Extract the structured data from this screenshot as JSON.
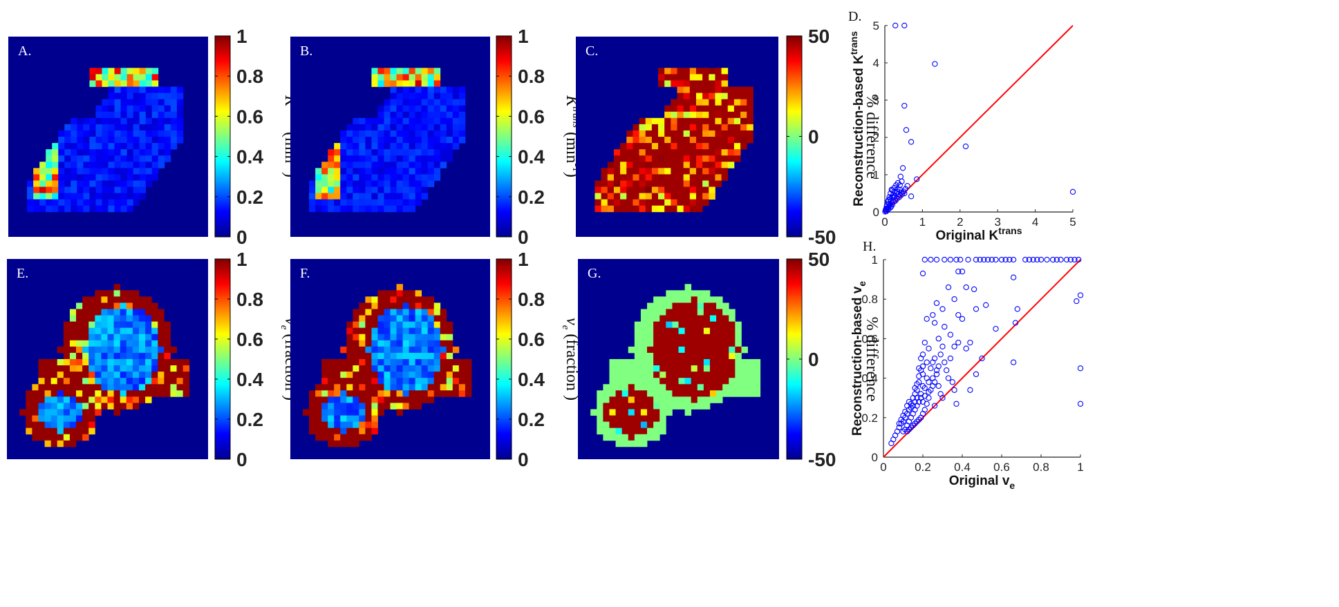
{
  "colors": {
    "map_background": "#00008f",
    "scatter_marker": "#0000ff",
    "identity_line": "#ff0000"
  },
  "maps": [
    {
      "id": "A",
      "label": "A.",
      "colorbar": {
        "ticks": [
          "1",
          "0.8",
          "0.6",
          "0.4",
          "0.2",
          "0"
        ],
        "label_main": "K",
        "label_sup": "trans",
        "label_unit": " (min",
        "label_unit_sup": "-1",
        "label_close": ")"
      }
    },
    {
      "id": "B",
      "label": "B.",
      "colorbar": {
        "ticks": [
          "1",
          "0.8",
          "0.6",
          "0.4",
          "0.2",
          "0"
        ],
        "label_main": "K",
        "label_sup": "trans",
        "label_unit": " (min",
        "label_unit_sup": "-1",
        "label_close": ")"
      }
    },
    {
      "id": "C",
      "label": "C.",
      "colorbar": {
        "ticks": [
          "50",
          "0",
          "-50"
        ],
        "label_text": "% difference"
      }
    },
    {
      "id": "E",
      "label": "E.",
      "colorbar": {
        "ticks": [
          "1",
          "0.8",
          "0.6",
          "0.4",
          "0.2",
          "0"
        ],
        "label_main": "v",
        "label_sub": "e",
        "label_unit": " (fraction )"
      }
    },
    {
      "id": "F",
      "label": "F.",
      "colorbar": {
        "ticks": [
          "1",
          "0.8",
          "0.6",
          "0.4",
          "0.2",
          "0"
        ],
        "label_main": "v",
        "label_sub": "e",
        "label_unit": " (fraction )"
      }
    },
    {
      "id": "G",
      "label": "G.",
      "colorbar": {
        "ticks": [
          "50",
          "0",
          "-50"
        ],
        "label_text": "% difference"
      }
    }
  ],
  "chart_data": [
    {
      "id": "D",
      "label": "D.",
      "type": "scatter",
      "xlabel": "Original K",
      "xlabel_sup": "trans",
      "ylabel": "Reconstruction-based K",
      "ylabel_sup": "trans",
      "xlim": [
        0,
        5
      ],
      "ylim": [
        0,
        5
      ],
      "xticks": [
        "0",
        "1",
        "2",
        "3",
        "4",
        "5"
      ],
      "yticks": [
        "0",
        "1",
        "2",
        "3",
        "4",
        "5"
      ],
      "reference_line": [
        [
          0,
          0
        ],
        [
          5,
          5
        ]
      ],
      "points": [
        [
          0.28,
          5
        ],
        [
          0.52,
          5
        ],
        [
          1.33,
          3.97
        ],
        [
          0.52,
          2.85
        ],
        [
          0.57,
          2.2
        ],
        [
          0.7,
          1.88
        ],
        [
          2.15,
          1.76
        ],
        [
          5,
          0.54
        ],
        [
          0.48,
          1.18
        ],
        [
          0.42,
          0.95
        ],
        [
          0.85,
          0.88
        ],
        [
          0.6,
          0.7
        ],
        [
          0.55,
          0.62
        ],
        [
          0.7,
          0.42
        ],
        [
          0.45,
          0.82
        ],
        [
          0.35,
          0.78
        ],
        [
          0.3,
          0.72
        ],
        [
          0.25,
          0.65
        ],
        [
          0.2,
          0.58
        ],
        [
          0.18,
          0.6
        ],
        [
          0.15,
          0.5
        ],
        [
          0.22,
          0.45
        ],
        [
          0.12,
          0.4
        ],
        [
          0.1,
          0.32
        ],
        [
          0.08,
          0.28
        ],
        [
          0.14,
          0.35
        ],
        [
          0.05,
          0.15
        ],
        [
          0.03,
          0.08
        ],
        [
          0.02,
          0.05
        ],
        [
          0.06,
          0.2
        ],
        [
          0.09,
          0.12
        ],
        [
          0.11,
          0.22
        ],
        [
          0.13,
          0.18
        ],
        [
          0.16,
          0.3
        ],
        [
          0.19,
          0.25
        ],
        [
          0.23,
          0.38
        ],
        [
          0.27,
          0.42
        ],
        [
          0.3,
          0.5
        ],
        [
          0.33,
          0.55
        ],
        [
          0.36,
          0.48
        ],
        [
          0.4,
          0.6
        ],
        [
          0.44,
          0.52
        ],
        [
          0.38,
          0.4
        ],
        [
          0.32,
          0.35
        ],
        [
          0.28,
          0.3
        ],
        [
          0.24,
          0.28
        ],
        [
          0.2,
          0.2
        ],
        [
          0.17,
          0.15
        ],
        [
          0.07,
          0.1
        ],
        [
          0.04,
          0.02
        ],
        [
          0.01,
          0.01
        ],
        [
          0.05,
          0.06
        ],
        [
          0.1,
          0.08
        ],
        [
          0.15,
          0.12
        ],
        [
          0.5,
          0.55
        ],
        [
          0.46,
          0.48
        ],
        [
          0.42,
          0.44
        ],
        [
          0.52,
          0.5
        ],
        [
          0.26,
          0.55
        ],
        [
          0.34,
          0.62
        ],
        [
          0.4,
          0.72
        ],
        [
          0.2,
          0.4
        ]
      ]
    },
    {
      "id": "H",
      "label": "H.",
      "type": "scatter",
      "xlabel": "Original v",
      "xlabel_sub": "e",
      "ylabel": "Reconstruction-based v",
      "ylabel_sub": "e",
      "xlim": [
        0,
        1
      ],
      "ylim": [
        0,
        1
      ],
      "xticks": [
        "0",
        "0.2",
        "0.4",
        "0.6",
        "0.8",
        "1"
      ],
      "yticks": [
        "0",
        "0.2",
        "0.4",
        "0.6",
        "0.8",
        "1"
      ],
      "reference_line": [
        [
          0,
          0
        ],
        [
          1,
          1
        ]
      ],
      "points": [
        [
          0.21,
          1
        ],
        [
          0.24,
          1
        ],
        [
          0.27,
          1
        ],
        [
          0.31,
          1
        ],
        [
          0.34,
          1
        ],
        [
          0.37,
          1
        ],
        [
          0.39,
          1
        ],
        [
          0.43,
          1
        ],
        [
          0.47,
          1
        ],
        [
          0.49,
          1
        ],
        [
          0.51,
          1
        ],
        [
          0.53,
          1
        ],
        [
          0.55,
          1
        ],
        [
          0.57,
          1
        ],
        [
          0.6,
          1
        ],
        [
          0.62,
          1
        ],
        [
          0.64,
          1
        ],
        [
          0.66,
          1
        ],
        [
          0.72,
          1
        ],
        [
          0.74,
          1
        ],
        [
          0.76,
          1
        ],
        [
          0.78,
          1
        ],
        [
          0.8,
          1
        ],
        [
          0.83,
          1
        ],
        [
          0.86,
          1
        ],
        [
          0.88,
          1
        ],
        [
          0.9,
          1
        ],
        [
          0.93,
          1
        ],
        [
          0.95,
          1
        ],
        [
          0.97,
          1
        ],
        [
          0.99,
          1
        ],
        [
          0.2,
          0.93
        ],
        [
          0.38,
          0.94
        ],
        [
          0.4,
          0.94
        ],
        [
          0.66,
          0.91
        ],
        [
          0.98,
          0.79
        ],
        [
          1,
          0.82
        ],
        [
          1,
          0.45
        ],
        [
          1,
          0.27
        ],
        [
          0.68,
          0.75
        ],
        [
          0.57,
          0.65
        ],
        [
          0.67,
          0.68
        ],
        [
          0.66,
          0.48
        ],
        [
          0.5,
          0.5
        ],
        [
          0.47,
          0.42
        ],
        [
          0.44,
          0.34
        ],
        [
          0.47,
          0.75
        ],
        [
          0.52,
          0.77
        ],
        [
          0.46,
          0.85
        ],
        [
          0.42,
          0.86
        ],
        [
          0.33,
          0.86
        ],
        [
          0.36,
          0.8
        ],
        [
          0.38,
          0.72
        ],
        [
          0.4,
          0.7
        ],
        [
          0.3,
          0.75
        ],
        [
          0.26,
          0.68
        ],
        [
          0.27,
          0.78
        ],
        [
          0.31,
          0.66
        ],
        [
          0.34,
          0.62
        ],
        [
          0.36,
          0.56
        ],
        [
          0.38,
          0.58
        ],
        [
          0.23,
          0.55
        ],
        [
          0.21,
          0.58
        ],
        [
          0.22,
          0.7
        ],
        [
          0.25,
          0.72
        ],
        [
          0.28,
          0.6
        ],
        [
          0.29,
          0.52
        ],
        [
          0.31,
          0.48
        ],
        [
          0.33,
          0.4
        ],
        [
          0.35,
          0.38
        ],
        [
          0.36,
          0.34
        ],
        [
          0.37,
          0.27
        ],
        [
          0.2,
          0.52
        ],
        [
          0.19,
          0.5
        ],
        [
          0.18,
          0.45
        ],
        [
          0.2,
          0.42
        ],
        [
          0.22,
          0.4
        ],
        [
          0.23,
          0.38
        ],
        [
          0.21,
          0.35
        ],
        [
          0.19,
          0.32
        ],
        [
          0.17,
          0.3
        ],
        [
          0.16,
          0.28
        ],
        [
          0.15,
          0.26
        ],
        [
          0.14,
          0.25
        ],
        [
          0.13,
          0.24
        ],
        [
          0.12,
          0.22
        ],
        [
          0.11,
          0.2
        ],
        [
          0.1,
          0.18
        ],
        [
          0.09,
          0.17
        ],
        [
          0.08,
          0.15
        ],
        [
          0.07,
          0.13
        ],
        [
          0.06,
          0.11
        ],
        [
          0.05,
          0.09
        ],
        [
          0.04,
          0.07
        ],
        [
          0.15,
          0.22
        ],
        [
          0.14,
          0.2
        ],
        [
          0.13,
          0.18
        ],
        [
          0.12,
          0.16
        ],
        [
          0.11,
          0.14
        ],
        [
          0.1,
          0.13
        ],
        [
          0.16,
          0.24
        ],
        [
          0.17,
          0.26
        ],
        [
          0.18,
          0.28
        ],
        [
          0.19,
          0.3
        ],
        [
          0.24,
          0.45
        ],
        [
          0.25,
          0.48
        ],
        [
          0.26,
          0.5
        ],
        [
          0.27,
          0.42
        ],
        [
          0.28,
          0.36
        ],
        [
          0.29,
          0.32
        ],
        [
          0.3,
          0.3
        ],
        [
          0.26,
          0.26
        ],
        [
          0.25,
          0.4
        ],
        [
          0.24,
          0.34
        ],
        [
          0.23,
          0.3
        ],
        [
          0.22,
          0.27
        ],
        [
          0.21,
          0.24
        ],
        [
          0.2,
          0.22
        ],
        [
          0.19,
          0.2
        ],
        [
          0.18,
          0.19
        ],
        [
          0.17,
          0.18
        ],
        [
          0.16,
          0.17
        ],
        [
          0.15,
          0.16
        ],
        [
          0.14,
          0.15
        ],
        [
          0.13,
          0.14
        ],
        [
          0.12,
          0.13
        ],
        [
          0.2,
          0.36
        ],
        [
          0.18,
          0.38
        ],
        [
          0.17,
          0.34
        ],
        [
          0.16,
          0.32
        ],
        [
          0.22,
          0.48
        ],
        [
          0.32,
          0.44
        ],
        [
          0.34,
          0.5
        ],
        [
          0.42,
          0.55
        ],
        [
          0.44,
          0.58
        ],
        [
          0.3,
          0.56
        ],
        [
          0.28,
          0.46
        ],
        [
          0.27,
          0.44
        ],
        [
          0.26,
          0.38
        ],
        [
          0.25,
          0.36
        ],
        [
          0.23,
          0.33
        ],
        [
          0.2,
          0.28
        ],
        [
          0.21,
          0.31
        ],
        [
          0.14,
          0.27
        ],
        [
          0.13,
          0.28
        ],
        [
          0.12,
          0.26
        ],
        [
          0.11,
          0.23
        ],
        [
          0.1,
          0.21
        ],
        [
          0.09,
          0.19
        ],
        [
          0.08,
          0.17
        ],
        [
          0.15,
          0.3
        ],
        [
          0.16,
          0.35
        ],
        [
          0.17,
          0.37
        ],
        [
          0.18,
          0.41
        ],
        [
          0.19,
          0.44
        ],
        [
          0.2,
          0.46
        ]
      ]
    }
  ]
}
